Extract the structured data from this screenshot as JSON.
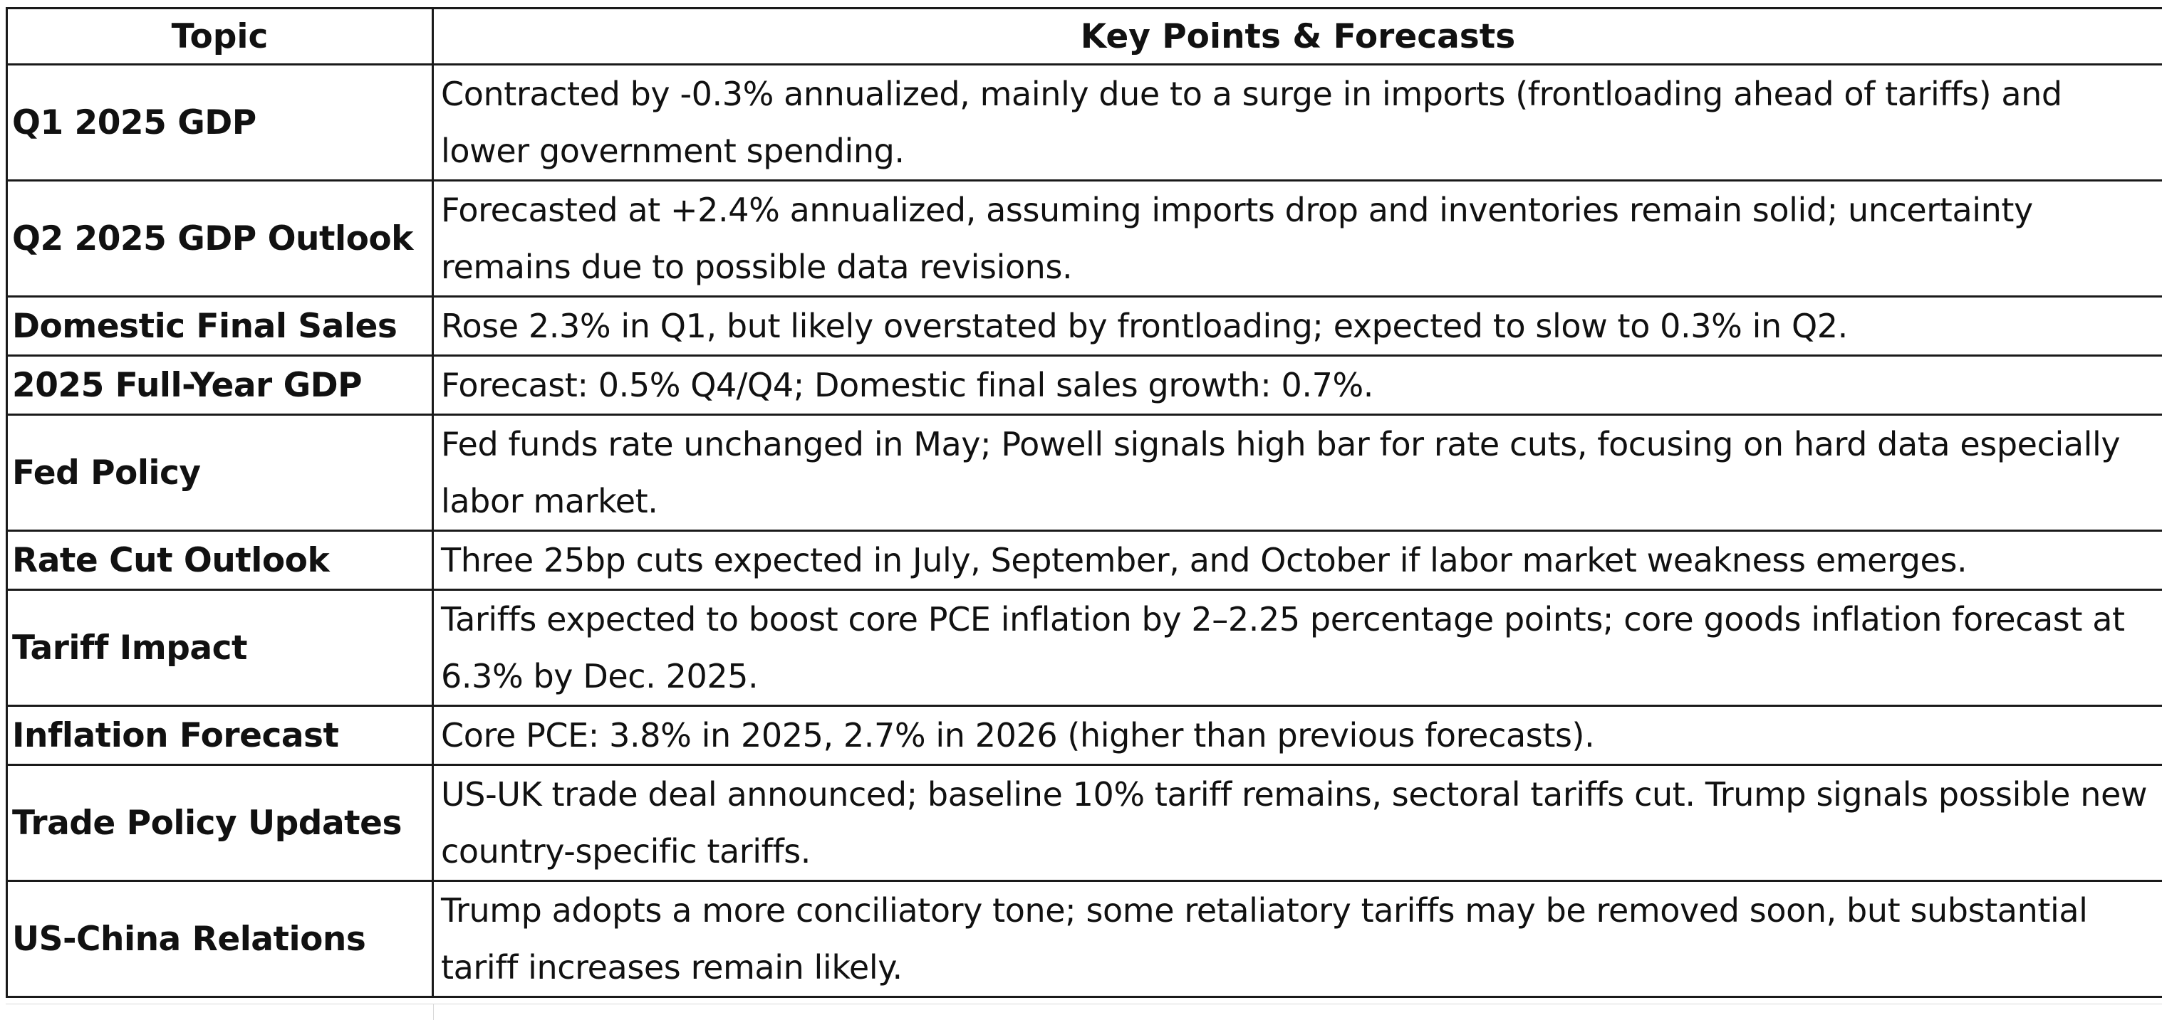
{
  "table": {
    "headers": {
      "topic": "Topic",
      "points": "Key Points & Forecasts"
    },
    "rows": [
      {
        "topic": "Q1 2025 GDP",
        "points": "Contracted by -0.3% annualized, mainly due to a surge in imports (frontloading ahead of tariffs) and lower government spending."
      },
      {
        "topic": "Q2 2025 GDP Outlook",
        "points": "Forecasted at +2.4% annualized, assuming imports drop and inventories remain solid; uncertainty remains due to possible data revisions."
      },
      {
        "topic": "Domestic Final Sales",
        "points": "Rose 2.3% in Q1, but likely overstated by frontloading; expected to slow to 0.3% in Q2."
      },
      {
        "topic": "2025 Full-Year GDP",
        "points": "Forecast: 0.5% Q4/Q4; Domestic final sales growth: 0.7%."
      },
      {
        "topic": "Fed Policy",
        "points": "Fed funds rate unchanged in May; Powell signals high bar for rate cuts, focusing on hard data especially labor market."
      },
      {
        "topic": "Rate Cut Outlook",
        "points": "Three 25bp cuts expected in July, September, and October if labor market weakness emerges."
      },
      {
        "topic": "Tariff Impact",
        "points": "Tariffs expected to boost core PCE inflation by 2–2.25 percentage points; core goods inflation forecast at 6.3% by Dec. 2025."
      },
      {
        "topic": "Inflation Forecast",
        "points": "Core PCE: 3.8% in 2025, 2.7% in 2026 (higher than previous forecasts)."
      },
      {
        "topic": "Trade Policy Updates",
        "points": "US-UK trade deal announced; baseline 10% tariff remains, sectoral tariffs cut. Trump signals possible new country-specific tariffs."
      },
      {
        "topic": "US-China Relations",
        "points": "Trump adopts a more conciliatory tone; some retaliatory tariffs may be removed soon, but substantial tariff increases remain likely."
      }
    ]
  },
  "colors": {
    "border": "#1a1a1a",
    "text": "#111111",
    "background": "#ffffff",
    "gridline": "#d8d8d8"
  }
}
